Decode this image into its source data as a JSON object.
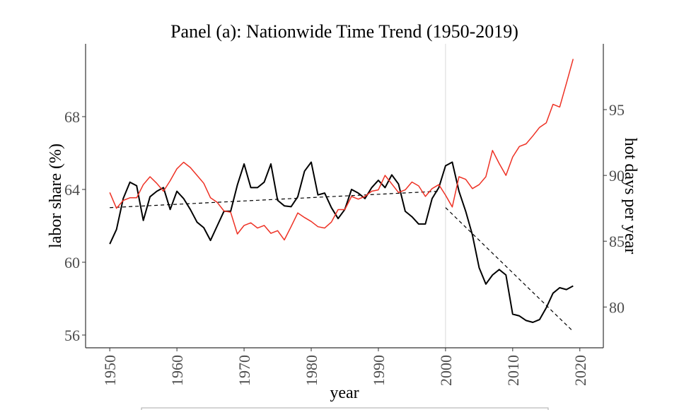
{
  "chart_data": {
    "type": "line",
    "title": "Panel (a): Nationwide Time Trend (1950-2019)",
    "xlabel": "year",
    "ylabel": "labor share (%)",
    "ylabel_right": "hot days per year",
    "xlim": [
      1946.4,
      2023.5
    ],
    "ylim": [
      55.3,
      72.0
    ],
    "ylim_right": [
      76.9,
      100.0
    ],
    "x_ticks": [
      1950,
      1960,
      1970,
      1980,
      1990,
      2000,
      2010,
      2020
    ],
    "y_ticks": [
      56,
      60,
      64,
      68
    ],
    "y_ticks_right": [
      80,
      85,
      90,
      95
    ],
    "grid": false,
    "vline": 2000,
    "colors": {
      "labor_share": "#000000",
      "hot_days": "#ee3124",
      "trend": "#000000",
      "vline": "#d9d9d9"
    },
    "x": [
      1950,
      1951,
      1952,
      1953,
      1954,
      1955,
      1956,
      1957,
      1958,
      1959,
      1960,
      1961,
      1962,
      1963,
      1964,
      1965,
      1966,
      1967,
      1968,
      1969,
      1970,
      1971,
      1972,
      1973,
      1974,
      1975,
      1976,
      1977,
      1978,
      1979,
      1980,
      1981,
      1982,
      1983,
      1984,
      1985,
      1986,
      1987,
      1988,
      1989,
      1990,
      1991,
      1992,
      1993,
      1994,
      1995,
      1996,
      1997,
      1998,
      1999,
      2000,
      2001,
      2002,
      2003,
      2004,
      2005,
      2006,
      2007,
      2008,
      2009,
      2010,
      2011,
      2012,
      2013,
      2014,
      2015,
      2016,
      2017,
      2018,
      2019
    ],
    "series": [
      {
        "axis": "left",
        "style": "solid",
        "values": [
          61.0,
          61.8,
          63.5,
          64.4,
          64.2,
          62.3,
          63.6,
          63.9,
          64.1,
          62.9,
          63.9,
          63.5,
          62.9,
          62.2,
          61.9,
          61.2,
          62.0,
          62.8,
          62.8,
          64.25,
          65.4,
          64.1,
          64.1,
          64.4,
          65.4,
          63.4,
          63.1,
          63.05,
          63.6,
          65.0,
          65.5,
          63.7,
          63.8,
          63.0,
          62.4,
          62.9,
          64.0,
          63.8,
          63.5,
          64.1,
          64.5,
          64.1,
          64.8,
          64.3,
          62.8,
          62.5,
          62.1,
          62.1,
          63.5,
          64.1,
          65.3,
          65.5,
          63.9,
          62.8,
          61.5,
          59.7,
          58.8,
          59.3,
          59.6,
          59.3,
          57.15,
          57.05,
          56.8,
          56.7,
          56.85,
          57.5,
          58.3,
          58.6,
          58.5,
          58.7
        ]
      },
      {
        "axis": "right",
        "style": "solid",
        "values": [
          88.7,
          87.5,
          88.1,
          88.3,
          88.3,
          89.3,
          89.9,
          89.4,
          88.8,
          89.6,
          90.5,
          91.0,
          90.6,
          90.0,
          89.4,
          88.3,
          87.95,
          87.3,
          87.2,
          85.55,
          86.2,
          86.4,
          86.0,
          86.2,
          85.6,
          85.8,
          85.1,
          86.1,
          87.15,
          86.8,
          86.5,
          86.1,
          86.0,
          86.45,
          87.4,
          87.4,
          88.4,
          88.2,
          88.4,
          88.8,
          88.9,
          90.0,
          89.35,
          88.7,
          88.9,
          89.5,
          89.2,
          88.4,
          89.0,
          89.3,
          88.5,
          87.6,
          89.9,
          89.7,
          89.0,
          89.3,
          89.9,
          91.9,
          90.9,
          90.0,
          91.4,
          92.2,
          92.4,
          93.0,
          93.65,
          94.0,
          95.4,
          95.2,
          97.0,
          98.85
        ]
      }
    ],
    "trend_lines": [
      {
        "axis": "left",
        "style": "dashed",
        "x": [
          1950,
          1999
        ],
        "values": [
          63.0,
          63.9
        ]
      },
      {
        "axis": "left",
        "style": "dashed",
        "x": [
          2000,
          2019
        ],
        "values": [
          63.0,
          56.2
        ]
      }
    ]
  }
}
